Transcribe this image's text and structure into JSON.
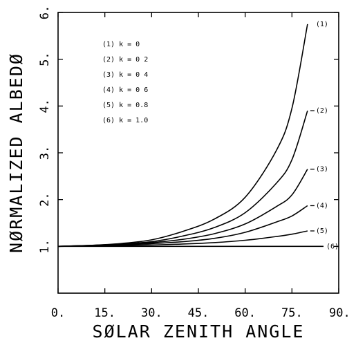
{
  "chart_data": {
    "type": "line",
    "xlabel": "SØLAR ZENITH ANGLE",
    "ylabel": "NØRMALIZED ALBEDØ",
    "xlim": [
      0,
      90
    ],
    "ylim": [
      0,
      6
    ],
    "xticks": [
      0,
      15,
      30,
      45,
      60,
      75,
      90
    ],
    "xtick_labels": [
      "0.",
      "15.",
      "30.",
      "45.",
      "60.",
      "75.",
      "90."
    ],
    "yticks": [
      1,
      2,
      3,
      4,
      5,
      6
    ],
    "ytick_labels": [
      "1.",
      "2.",
      "3.",
      "4.",
      "5.",
      "6."
    ],
    "grid": false,
    "legend_position": "top-left",
    "legend": [
      "(1) k = 0",
      "(2) k = 0 2",
      "(3) k = 0 4",
      "(4) k = 0 6",
      "(5) k = 0.8",
      "(6) k = 1.0"
    ],
    "x": [
      0,
      10,
      20,
      30,
      40,
      50,
      60,
      70,
      75,
      80
    ],
    "series": [
      {
        "name": "(1)",
        "values": [
          1.0,
          1.02,
          1.06,
          1.14,
          1.32,
          1.58,
          2.05,
          3.05,
          3.95,
          5.75
        ]
      },
      {
        "name": "(2)",
        "values": [
          1.0,
          1.02,
          1.05,
          1.1,
          1.22,
          1.4,
          1.72,
          2.35,
          2.85,
          3.9
        ]
      },
      {
        "name": "(3)",
        "values": [
          1.0,
          1.02,
          1.04,
          1.08,
          1.15,
          1.27,
          1.48,
          1.85,
          2.1,
          2.65
        ]
      },
      {
        "name": "(4)",
        "values": [
          1.0,
          1.01,
          1.03,
          1.06,
          1.1,
          1.17,
          1.3,
          1.52,
          1.65,
          1.87
        ]
      },
      {
        "name": "(5)",
        "values": [
          1.0,
          1.01,
          1.02,
          1.03,
          1.05,
          1.08,
          1.13,
          1.21,
          1.26,
          1.33
        ]
      },
      {
        "name": "(6)",
        "values": [
          1.0,
          1.0,
          1.0,
          1.0,
          1.0,
          1.0,
          1.0,
          1.0,
          1.0,
          1.0
        ]
      }
    ]
  }
}
